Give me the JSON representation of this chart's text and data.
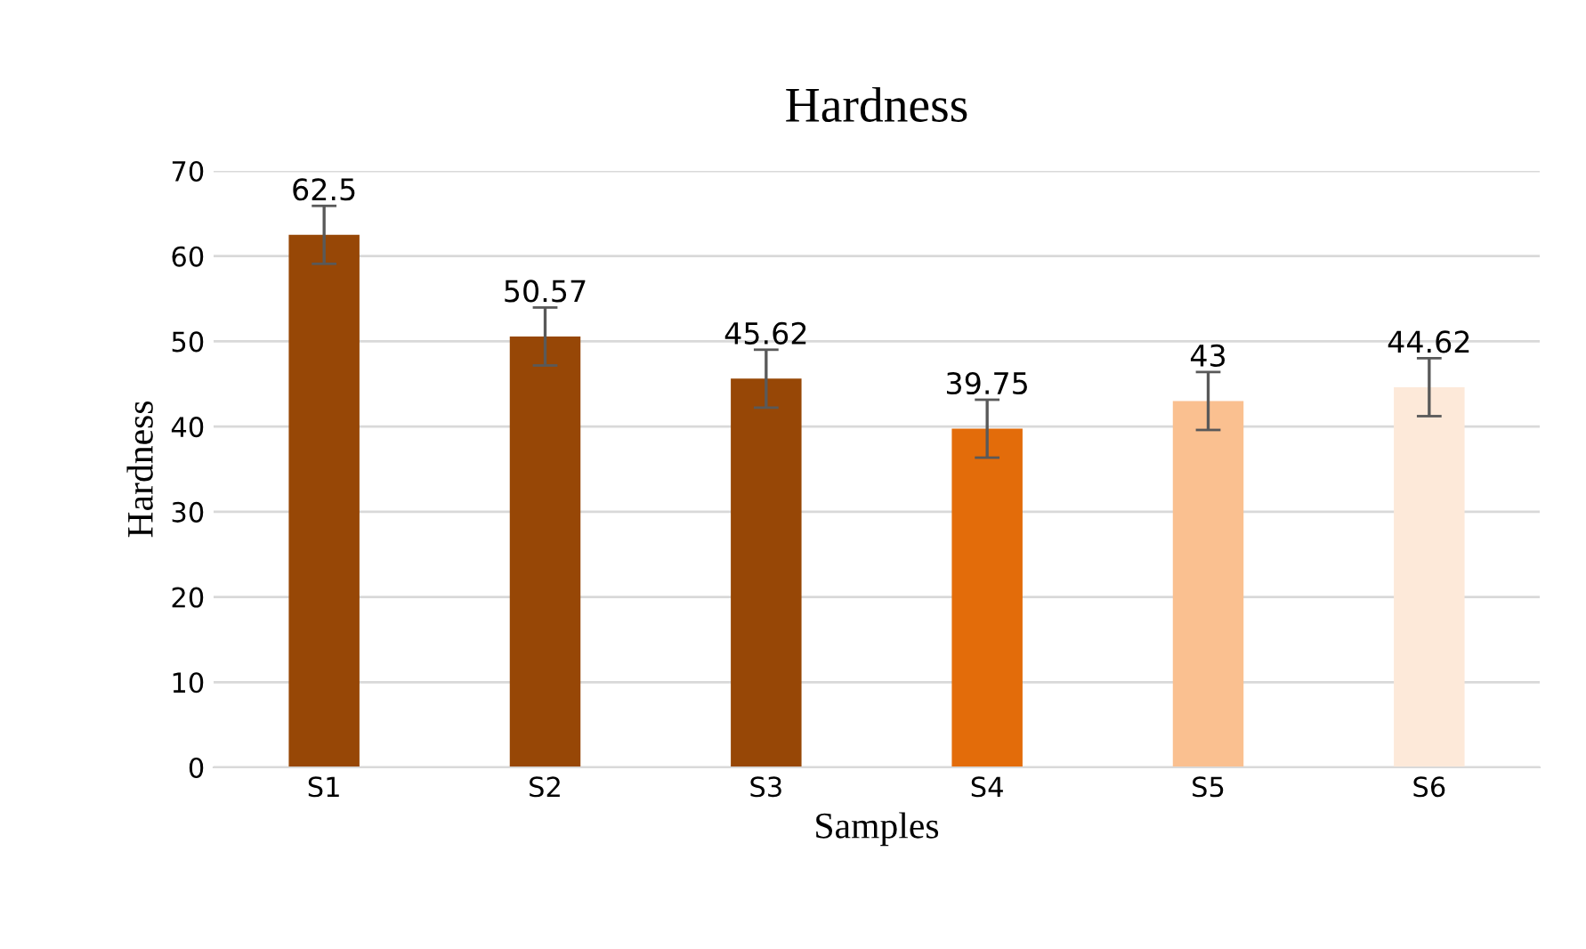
{
  "chart_data": {
    "type": "bar",
    "title": "Hardness",
    "xlabel": "Samples",
    "ylabel": "Hardness",
    "categories": [
      "S1",
      "S2",
      "S3",
      "S4",
      "S5",
      "S6"
    ],
    "values": [
      62.5,
      50.57,
      45.62,
      39.75,
      43,
      44.62
    ],
    "colors": [
      "#974706",
      "#974706",
      "#974706",
      "#e36c0a",
      "#fac090",
      "#fde9d9"
    ],
    "errors": [
      3.4,
      3.4,
      3.4,
      3.4,
      3.4,
      3.4
    ],
    "data_labels": true,
    "ylim": [
      0,
      70
    ],
    "yticks": [
      0,
      10,
      20,
      30,
      40,
      50,
      60,
      70
    ],
    "grid": "y",
    "legend": false
  }
}
